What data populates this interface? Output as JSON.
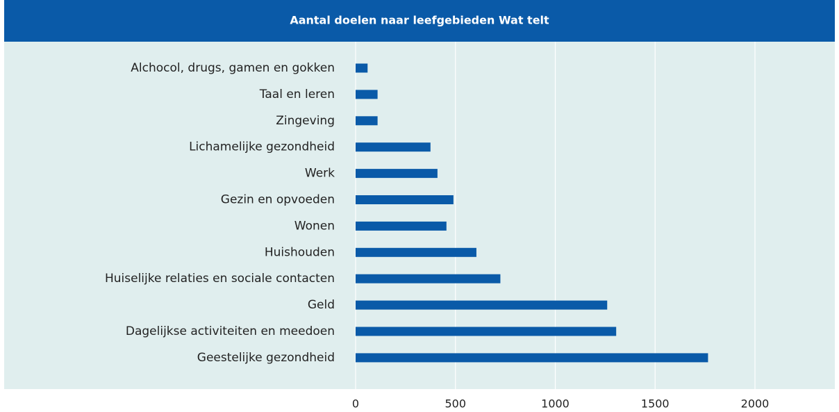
{
  "chart_data": {
    "type": "bar",
    "orientation": "horizontal",
    "title": "Aantal doelen naar leefgebieden Wat telt",
    "categories": [
      "Alchocol, drugs, gamen en gokken",
      "Taal en leren",
      "Zingeving",
      "Lichamelijke gezondheid",
      "Werk",
      "Gezin en opvoeden",
      "Wonen",
      "Huishouden",
      "Huiselijke relaties en sociale contacten",
      "Geld",
      "Dagelijkse activiteiten en meedoen",
      "Geestelijke gezondheid"
    ],
    "values": [
      60,
      110,
      110,
      375,
      410,
      490,
      455,
      605,
      725,
      1260,
      1305,
      1765
    ],
    "color": "#0a5aa8",
    "xlim": [
      0,
      2400
    ],
    "xticks": [
      0,
      500,
      1000,
      1500,
      2000
    ],
    "grid": true
  }
}
